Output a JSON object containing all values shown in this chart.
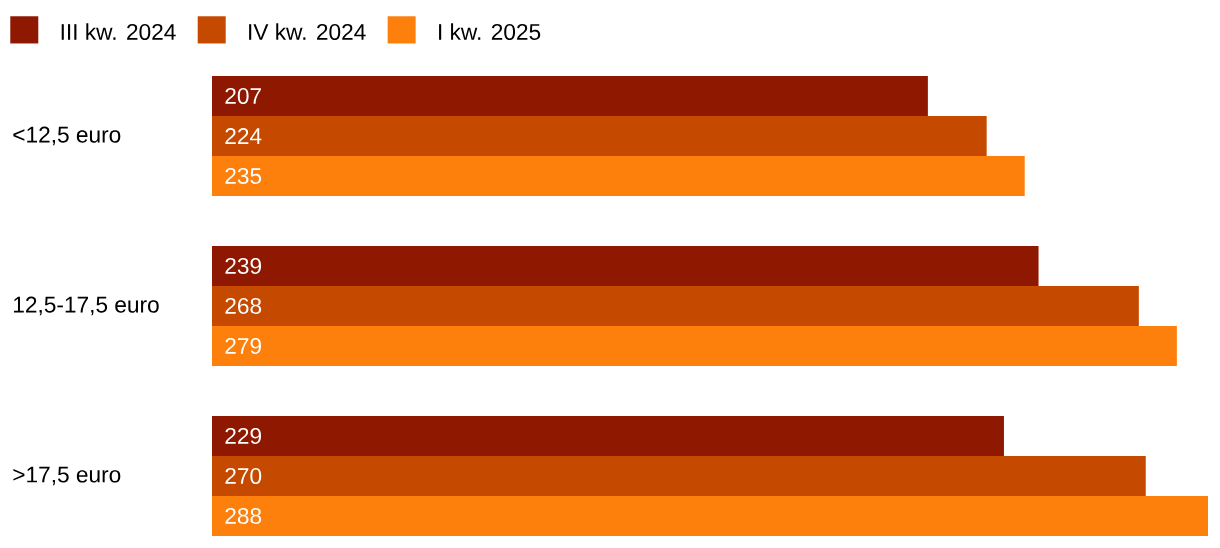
{
  "chart_data": {
    "type": "bar",
    "orientation": "horizontal",
    "categories": [
      "<12,5 euro",
      "12,5-17,5 euro",
      ">17,5 euro"
    ],
    "series": [
      {
        "name": "III kw. 2024",
        "color": "#8e1800",
        "values": [
          207,
          239,
          229
        ]
      },
      {
        "name": "IV kw. 2024",
        "color": "#c54a00",
        "values": [
          224,
          268,
          270
        ]
      },
      {
        "name": "I kw. 2025",
        "color": "#fd800d",
        "values": [
          235,
          279,
          288
        ]
      }
    ],
    "data_labels": true,
    "legend": "top left",
    "tick_labels": "y"
  }
}
